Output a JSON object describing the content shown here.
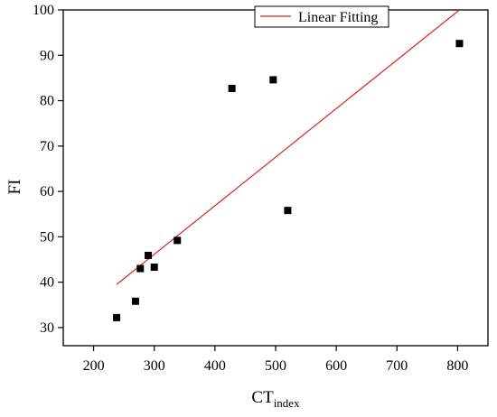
{
  "chart_data": {
    "type": "scatter",
    "title": "",
    "xlabel": "CT",
    "xlabel_sub": "index",
    "ylabel": "FI",
    "xlim": [
      150,
      850
    ],
    "ylim": [
      26,
      100
    ],
    "x_ticks": [
      200,
      300,
      400,
      500,
      600,
      700,
      800
    ],
    "y_ticks": [
      30,
      40,
      50,
      60,
      70,
      80,
      90,
      100
    ],
    "grid": false,
    "legend": {
      "position": "top-right",
      "entries": [
        "Linear Fitting"
      ]
    },
    "series": [
      {
        "type": "scatter",
        "marker": "square",
        "color": "#000000",
        "points": [
          {
            "x": 238,
            "y": 32.2
          },
          {
            "x": 269,
            "y": 35.8
          },
          {
            "x": 277,
            "y": 43.0
          },
          {
            "x": 290,
            "y": 45.9
          },
          {
            "x": 300,
            "y": 43.3
          },
          {
            "x": 338,
            "y": 49.2
          },
          {
            "x": 428,
            "y": 82.7
          },
          {
            "x": 496,
            "y": 84.6
          },
          {
            "x": 520,
            "y": 55.8
          },
          {
            "x": 803,
            "y": 92.6
          }
        ]
      },
      {
        "name": "Linear Fitting",
        "type": "line",
        "color": "#e0261e",
        "points": [
          {
            "x": 238,
            "y": 39.5
          },
          {
            "x": 803,
            "y": 100.0
          }
        ]
      }
    ]
  }
}
